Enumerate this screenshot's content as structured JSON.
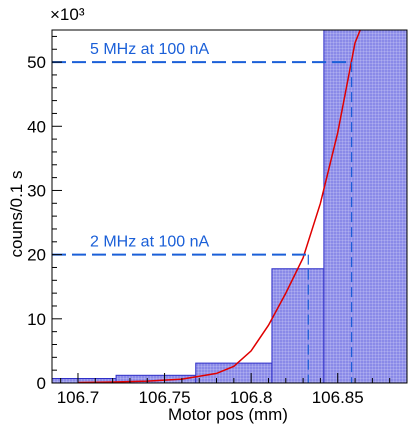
{
  "chart_data": {
    "type": "bar",
    "title": "",
    "xlabel": "Motor pos (mm)",
    "ylabel": "couns/0.1 s",
    "y_multiplier_label": "×10³",
    "xlim": [
      106.685,
      106.89
    ],
    "ylim": [
      0,
      55
    ],
    "y_ticks": [
      0,
      10,
      20,
      30,
      40,
      50
    ],
    "x_ticks": [
      106.7,
      106.75,
      106.8,
      106.85
    ],
    "x_tick_labels": [
      "106.7",
      "106.75",
      "106.8",
      "106.85"
    ],
    "grid": false,
    "legend": "none",
    "bin_edges": [
      106.685,
      106.722,
      106.768,
      106.812,
      106.842,
      106.89
    ],
    "values": [
      0.7,
      1.2,
      3.1,
      17.8,
      55.0
    ],
    "bar_fill": "#8a8ae8",
    "bar_stroke": "#3030c8",
    "fit_curve": {
      "color": "#e00000",
      "model": "exponential",
      "points": [
        [
          106.7,
          0.08
        ],
        [
          106.72,
          0.15
        ],
        [
          106.74,
          0.3
        ],
        [
          106.76,
          0.6
        ],
        [
          106.78,
          1.5
        ],
        [
          106.79,
          2.6
        ],
        [
          106.8,
          5.0
        ],
        [
          106.81,
          9.0
        ],
        [
          106.82,
          14.0
        ],
        [
          106.83,
          19.5
        ],
        [
          106.84,
          28.0
        ],
        [
          106.85,
          39.0
        ],
        [
          106.86,
          53.0
        ],
        [
          106.863,
          55.0
        ]
      ]
    },
    "annotations": [
      {
        "text": "5 MHz at 100 nA",
        "y": 50,
        "x_start": 106.685,
        "x_end": 106.858,
        "drop_to_x": 106.858
      },
      {
        "text": "2 MHz at 100 nA",
        "y": 20,
        "x_start": 106.685,
        "x_end": 106.833,
        "drop_to_x": 106.833
      }
    ],
    "annotation_color": "#1a5fd8"
  }
}
